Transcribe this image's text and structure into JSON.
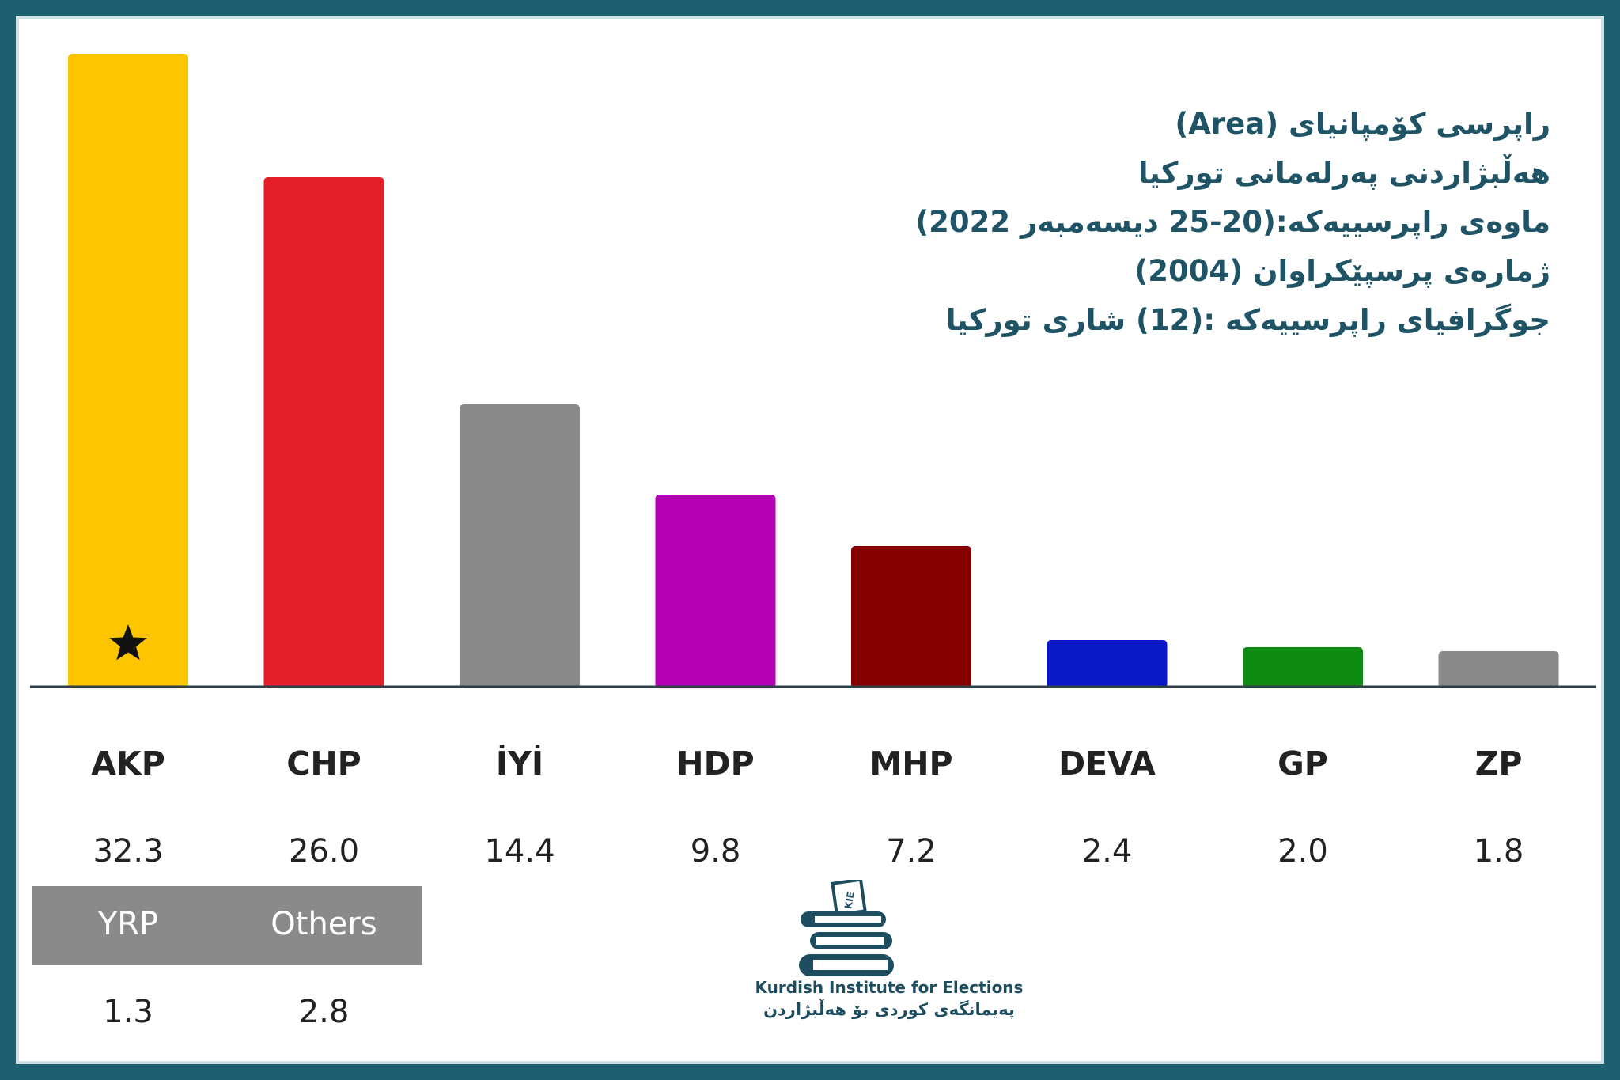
{
  "info": {
    "lines": [
      "راپرسی کۆمپانیای (Area)",
      "هەڵبژاردنی پەرلەمانی تورکیا",
      "ماوەی راپرسییەکە:(20-25 دیسەمبەر 2022)",
      "ژمارەی پرسپێکراوان (2004)",
      "جوگرافیای راپرسییەکە :(12) شاری تورکیا"
    ]
  },
  "chart_data": {
    "type": "bar",
    "categories": [
      "AKP",
      "CHP",
      "İYİ",
      "HDP",
      "MHP",
      "DEVA",
      "GP",
      "ZP"
    ],
    "values": [
      32.3,
      26.0,
      14.4,
      9.8,
      7.2,
      2.4,
      2.0,
      1.8
    ],
    "value_labels": [
      "32.3",
      "26.0",
      "14.4",
      "9.8",
      "7.2",
      "2.4",
      "2.0",
      "1.8"
    ],
    "colors": [
      "#fdc500",
      "#e41f2a",
      "#8a8a8a",
      "#b200b2",
      "#870000",
      "#0a18c8",
      "#0e8a12",
      "#8a8a8a"
    ],
    "star_marker": "AKP",
    "ylim": [
      0,
      32.3
    ],
    "grid": false,
    "others": {
      "categories": [
        "YRP",
        "Others"
      ],
      "values": [
        1.3,
        2.8
      ],
      "value_labels": [
        "1.3",
        "2.8"
      ],
      "header_color": "#8a8a8a"
    }
  },
  "logo": {
    "line1": "Kurdish Institute for Elections",
    "line2": "پەیمانگەی کوردی بۆ هەڵبژاردن",
    "icon": "stacked-books-ballot-icon",
    "badge": "KIE",
    "color": "#1e4d5f"
  }
}
